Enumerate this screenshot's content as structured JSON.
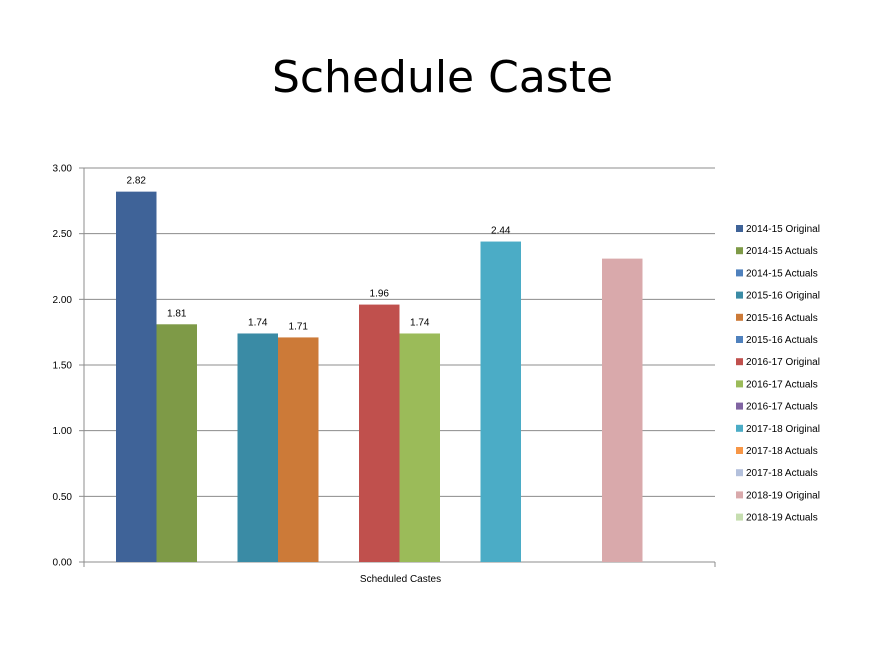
{
  "slide": {
    "title": "Schedule Caste"
  },
  "chart_data": {
    "type": "bar",
    "categories": [
      "Scheduled Castes"
    ],
    "ylim": [
      0,
      3
    ],
    "yticks": [
      "0.00",
      "0.50",
      "1.00",
      "1.50",
      "2.00",
      "2.50",
      "3.00"
    ],
    "grid": true,
    "legend_position": "right",
    "series": [
      {
        "name": "2014-15 Original",
        "values": [
          2.82
        ],
        "label": "2.82",
        "color": "#3F6398"
      },
      {
        "name": "2014-15 Actuals",
        "values": [
          1.81
        ],
        "label": "1.81",
        "color": "#7E9A47"
      },
      {
        "name": "2014-15 Actuals",
        "values": [
          null
        ],
        "label": "",
        "color": "#4F81BD"
      },
      {
        "name": "2015-16 Original",
        "values": [
          1.74
        ],
        "label": "1.74",
        "color": "#3A8BA5"
      },
      {
        "name": "2015-16 Actuals",
        "values": [
          1.71
        ],
        "label": "1.71",
        "color": "#CC7A38"
      },
      {
        "name": "2015-16 Actuals",
        "values": [
          null
        ],
        "label": "",
        "color": "#4F81BD"
      },
      {
        "name": "2016-17 Original",
        "values": [
          1.96
        ],
        "label": "1.96",
        "color": "#C0504D"
      },
      {
        "name": "2016-17 Actuals",
        "values": [
          1.74
        ],
        "label": "1.74",
        "color": "#9BBB59"
      },
      {
        "name": "2016-17 Actuals",
        "values": [
          null
        ],
        "label": "",
        "color": "#8064A2"
      },
      {
        "name": "2017-18 Original",
        "values": [
          2.44
        ],
        "label": "2.44",
        "color": "#4BACC6"
      },
      {
        "name": "2017-18 Actuals",
        "values": [
          null
        ],
        "label": "",
        "color": "#F79646"
      },
      {
        "name": "2017-18 Actuals",
        "values": [
          null
        ],
        "label": "",
        "color": "#B3C0DC"
      },
      {
        "name": "2018-19 Original",
        "values": [
          2.31
        ],
        "label": "",
        "color": "#D9A9AB"
      },
      {
        "name": "2018-19 Actuals",
        "values": [
          null
        ],
        "label": "",
        "color": "#C6DEB0"
      }
    ]
  }
}
